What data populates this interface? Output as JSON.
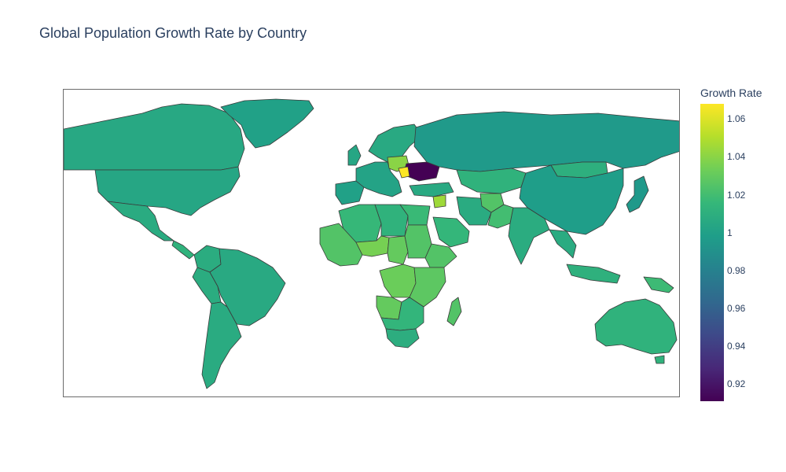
{
  "title": "Global Population Growth Rate by Country",
  "colorbar": {
    "title": "Growth Rate",
    "min": 0.911,
    "max": 1.068,
    "ticks": [
      {
        "value": 0.92,
        "label": "0.92"
      },
      {
        "value": 0.94,
        "label": "0.94"
      },
      {
        "value": 0.96,
        "label": "0.96"
      },
      {
        "value": 0.98,
        "label": "0.98"
      },
      {
        "value": 1.0,
        "label": "1"
      },
      {
        "value": 1.02,
        "label": "1.02"
      },
      {
        "value": 1.04,
        "label": "1.04"
      },
      {
        "value": 1.06,
        "label": "1.06"
      }
    ],
    "colorscale": "Viridis",
    "scale_colors": [
      "#440154",
      "#482878",
      "#3e4989",
      "#31688e",
      "#26828e",
      "#1f9e89",
      "#35b779",
      "#6ece58",
      "#b5de2b",
      "#fde725"
    ]
  },
  "chart_data": {
    "type": "choropleth",
    "projection": "equirectangular",
    "locations": [
      {
        "name": "Canada",
        "value": 1.005
      },
      {
        "name": "United States",
        "value": 1.004
      },
      {
        "name": "Greenland",
        "value": 1.0
      },
      {
        "name": "Mexico",
        "value": 1.007
      },
      {
        "name": "Central America",
        "value": 1.012
      },
      {
        "name": "Brazil",
        "value": 1.006
      },
      {
        "name": "Peru",
        "value": 1.008
      },
      {
        "name": "Argentina",
        "value": 1.007
      },
      {
        "name": "Colombia",
        "value": 1.008
      },
      {
        "name": "Russia",
        "value": 0.996
      },
      {
        "name": "China",
        "value": 0.998
      },
      {
        "name": "Kazakhstan",
        "value": 1.012
      },
      {
        "name": "India",
        "value": 1.008
      },
      {
        "name": "Mongolia",
        "value": 1.01
      },
      {
        "name": "Iran",
        "value": 1.007
      },
      {
        "name": "Afghanistan",
        "value": 1.025
      },
      {
        "name": "Pakistan",
        "value": 1.02
      },
      {
        "name": "Saudi Arabia",
        "value": 1.015
      },
      {
        "name": "Southeast Asia",
        "value": 1.007
      },
      {
        "name": "Indonesia",
        "value": 1.011
      },
      {
        "name": "Papua New Guinea",
        "value": 1.018
      },
      {
        "name": "Japan",
        "value": 0.995
      },
      {
        "name": "Australia",
        "value": 1.012
      },
      {
        "name": "Algeria",
        "value": 1.016
      },
      {
        "name": "Libya",
        "value": 1.012
      },
      {
        "name": "Egypt",
        "value": 1.017
      },
      {
        "name": "West Africa",
        "value": 1.025
      },
      {
        "name": "Niger",
        "value": 1.035
      },
      {
        "name": "Chad",
        "value": 1.03
      },
      {
        "name": "Sudan",
        "value": 1.025
      },
      {
        "name": "Ethiopia",
        "value": 1.025
      },
      {
        "name": "DR Congo",
        "value": 1.032
      },
      {
        "name": "Angola",
        "value": 1.03
      },
      {
        "name": "East Africa",
        "value": 1.028
      },
      {
        "name": "Southern Africa",
        "value": 1.014
      },
      {
        "name": "South Africa",
        "value": 1.009
      },
      {
        "name": "Madagascar",
        "value": 1.025
      },
      {
        "name": "Western Europe",
        "value": 1.002
      },
      {
        "name": "Scandinavia",
        "value": 1.006
      },
      {
        "name": "Iberia",
        "value": 1.0
      },
      {
        "name": "United Kingdom",
        "value": 1.004
      },
      {
        "name": "Poland",
        "value": 1.04
      },
      {
        "name": "Ukraine",
        "value": 0.911
      },
      {
        "name": "Moldova",
        "value": 1.068
      },
      {
        "name": "Turkey",
        "value": 1.006
      },
      {
        "name": "Syria",
        "value": 1.045
      }
    ]
  }
}
